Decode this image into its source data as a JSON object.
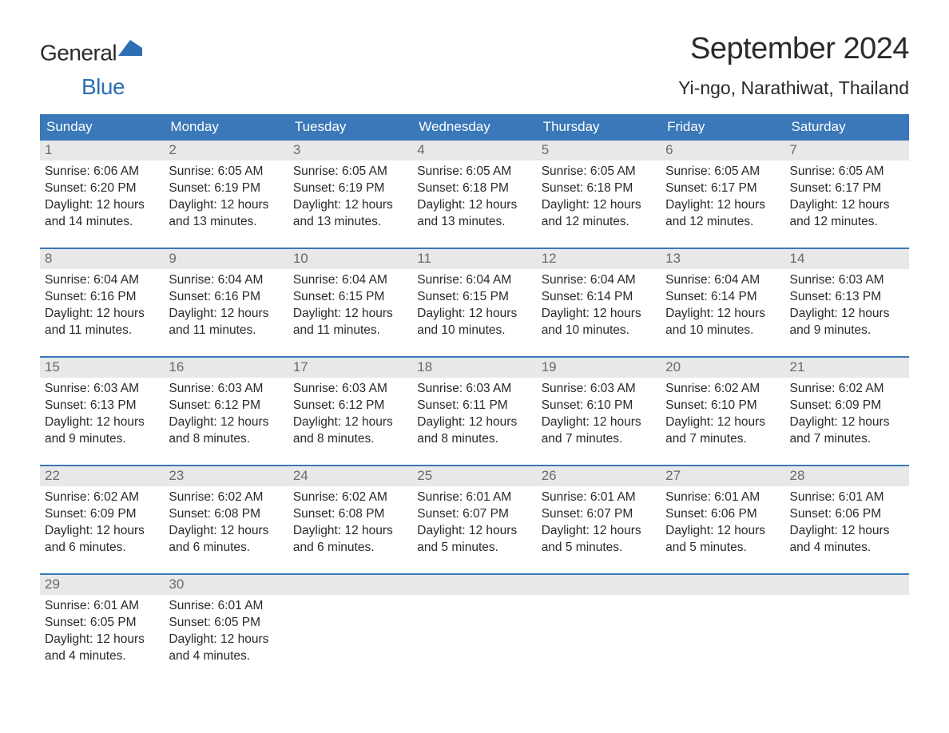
{
  "brand": {
    "word1": "General",
    "word2": "Blue",
    "flag_color": "#2d6fb5"
  },
  "header": {
    "month_title": "September 2024",
    "location": "Yi-ngo, Narathiwat, Thailand"
  },
  "colors": {
    "header_bg": "#3a78b9",
    "header_text": "#ffffff",
    "daynum_bg": "#e8e8e8",
    "daynum_text": "#6a6a6a",
    "body_text": "#2a2a2a",
    "row_border": "#3a78b9",
    "background": "#ffffff"
  },
  "day_names": [
    "Sunday",
    "Monday",
    "Tuesday",
    "Wednesday",
    "Thursday",
    "Friday",
    "Saturday"
  ],
  "weeks": [
    [
      {
        "n": "1",
        "sunrise": "Sunrise: 6:06 AM",
        "sunset": "Sunset: 6:20 PM",
        "d1": "Daylight: 12 hours",
        "d2": "and 14 minutes."
      },
      {
        "n": "2",
        "sunrise": "Sunrise: 6:05 AM",
        "sunset": "Sunset: 6:19 PM",
        "d1": "Daylight: 12 hours",
        "d2": "and 13 minutes."
      },
      {
        "n": "3",
        "sunrise": "Sunrise: 6:05 AM",
        "sunset": "Sunset: 6:19 PM",
        "d1": "Daylight: 12 hours",
        "d2": "and 13 minutes."
      },
      {
        "n": "4",
        "sunrise": "Sunrise: 6:05 AM",
        "sunset": "Sunset: 6:18 PM",
        "d1": "Daylight: 12 hours",
        "d2": "and 13 minutes."
      },
      {
        "n": "5",
        "sunrise": "Sunrise: 6:05 AM",
        "sunset": "Sunset: 6:18 PM",
        "d1": "Daylight: 12 hours",
        "d2": "and 12 minutes."
      },
      {
        "n": "6",
        "sunrise": "Sunrise: 6:05 AM",
        "sunset": "Sunset: 6:17 PM",
        "d1": "Daylight: 12 hours",
        "d2": "and 12 minutes."
      },
      {
        "n": "7",
        "sunrise": "Sunrise: 6:05 AM",
        "sunset": "Sunset: 6:17 PM",
        "d1": "Daylight: 12 hours",
        "d2": "and 12 minutes."
      }
    ],
    [
      {
        "n": "8",
        "sunrise": "Sunrise: 6:04 AM",
        "sunset": "Sunset: 6:16 PM",
        "d1": "Daylight: 12 hours",
        "d2": "and 11 minutes."
      },
      {
        "n": "9",
        "sunrise": "Sunrise: 6:04 AM",
        "sunset": "Sunset: 6:16 PM",
        "d1": "Daylight: 12 hours",
        "d2": "and 11 minutes."
      },
      {
        "n": "10",
        "sunrise": "Sunrise: 6:04 AM",
        "sunset": "Sunset: 6:15 PM",
        "d1": "Daylight: 12 hours",
        "d2": "and 11 minutes."
      },
      {
        "n": "11",
        "sunrise": "Sunrise: 6:04 AM",
        "sunset": "Sunset: 6:15 PM",
        "d1": "Daylight: 12 hours",
        "d2": "and 10 minutes."
      },
      {
        "n": "12",
        "sunrise": "Sunrise: 6:04 AM",
        "sunset": "Sunset: 6:14 PM",
        "d1": "Daylight: 12 hours",
        "d2": "and 10 minutes."
      },
      {
        "n": "13",
        "sunrise": "Sunrise: 6:04 AM",
        "sunset": "Sunset: 6:14 PM",
        "d1": "Daylight: 12 hours",
        "d2": "and 10 minutes."
      },
      {
        "n": "14",
        "sunrise": "Sunrise: 6:03 AM",
        "sunset": "Sunset: 6:13 PM",
        "d1": "Daylight: 12 hours",
        "d2": "and 9 minutes."
      }
    ],
    [
      {
        "n": "15",
        "sunrise": "Sunrise: 6:03 AM",
        "sunset": "Sunset: 6:13 PM",
        "d1": "Daylight: 12 hours",
        "d2": "and 9 minutes."
      },
      {
        "n": "16",
        "sunrise": "Sunrise: 6:03 AM",
        "sunset": "Sunset: 6:12 PM",
        "d1": "Daylight: 12 hours",
        "d2": "and 8 minutes."
      },
      {
        "n": "17",
        "sunrise": "Sunrise: 6:03 AM",
        "sunset": "Sunset: 6:12 PM",
        "d1": "Daylight: 12 hours",
        "d2": "and 8 minutes."
      },
      {
        "n": "18",
        "sunrise": "Sunrise: 6:03 AM",
        "sunset": "Sunset: 6:11 PM",
        "d1": "Daylight: 12 hours",
        "d2": "and 8 minutes."
      },
      {
        "n": "19",
        "sunrise": "Sunrise: 6:03 AM",
        "sunset": "Sunset: 6:10 PM",
        "d1": "Daylight: 12 hours",
        "d2": "and 7 minutes."
      },
      {
        "n": "20",
        "sunrise": "Sunrise: 6:02 AM",
        "sunset": "Sunset: 6:10 PM",
        "d1": "Daylight: 12 hours",
        "d2": "and 7 minutes."
      },
      {
        "n": "21",
        "sunrise": "Sunrise: 6:02 AM",
        "sunset": "Sunset: 6:09 PM",
        "d1": "Daylight: 12 hours",
        "d2": "and 7 minutes."
      }
    ],
    [
      {
        "n": "22",
        "sunrise": "Sunrise: 6:02 AM",
        "sunset": "Sunset: 6:09 PM",
        "d1": "Daylight: 12 hours",
        "d2": "and 6 minutes."
      },
      {
        "n": "23",
        "sunrise": "Sunrise: 6:02 AM",
        "sunset": "Sunset: 6:08 PM",
        "d1": "Daylight: 12 hours",
        "d2": "and 6 minutes."
      },
      {
        "n": "24",
        "sunrise": "Sunrise: 6:02 AM",
        "sunset": "Sunset: 6:08 PM",
        "d1": "Daylight: 12 hours",
        "d2": "and 6 minutes."
      },
      {
        "n": "25",
        "sunrise": "Sunrise: 6:01 AM",
        "sunset": "Sunset: 6:07 PM",
        "d1": "Daylight: 12 hours",
        "d2": "and 5 minutes."
      },
      {
        "n": "26",
        "sunrise": "Sunrise: 6:01 AM",
        "sunset": "Sunset: 6:07 PM",
        "d1": "Daylight: 12 hours",
        "d2": "and 5 minutes."
      },
      {
        "n": "27",
        "sunrise": "Sunrise: 6:01 AM",
        "sunset": "Sunset: 6:06 PM",
        "d1": "Daylight: 12 hours",
        "d2": "and 5 minutes."
      },
      {
        "n": "28",
        "sunrise": "Sunrise: 6:01 AM",
        "sunset": "Sunset: 6:06 PM",
        "d1": "Daylight: 12 hours",
        "d2": "and 4 minutes."
      }
    ],
    [
      {
        "n": "29",
        "sunrise": "Sunrise: 6:01 AM",
        "sunset": "Sunset: 6:05 PM",
        "d1": "Daylight: 12 hours",
        "d2": "and 4 minutes."
      },
      {
        "n": "30",
        "sunrise": "Sunrise: 6:01 AM",
        "sunset": "Sunset: 6:05 PM",
        "d1": "Daylight: 12 hours",
        "d2": "and 4 minutes."
      },
      {
        "empty": true
      },
      {
        "empty": true
      },
      {
        "empty": true
      },
      {
        "empty": true
      },
      {
        "empty": true
      }
    ]
  ]
}
